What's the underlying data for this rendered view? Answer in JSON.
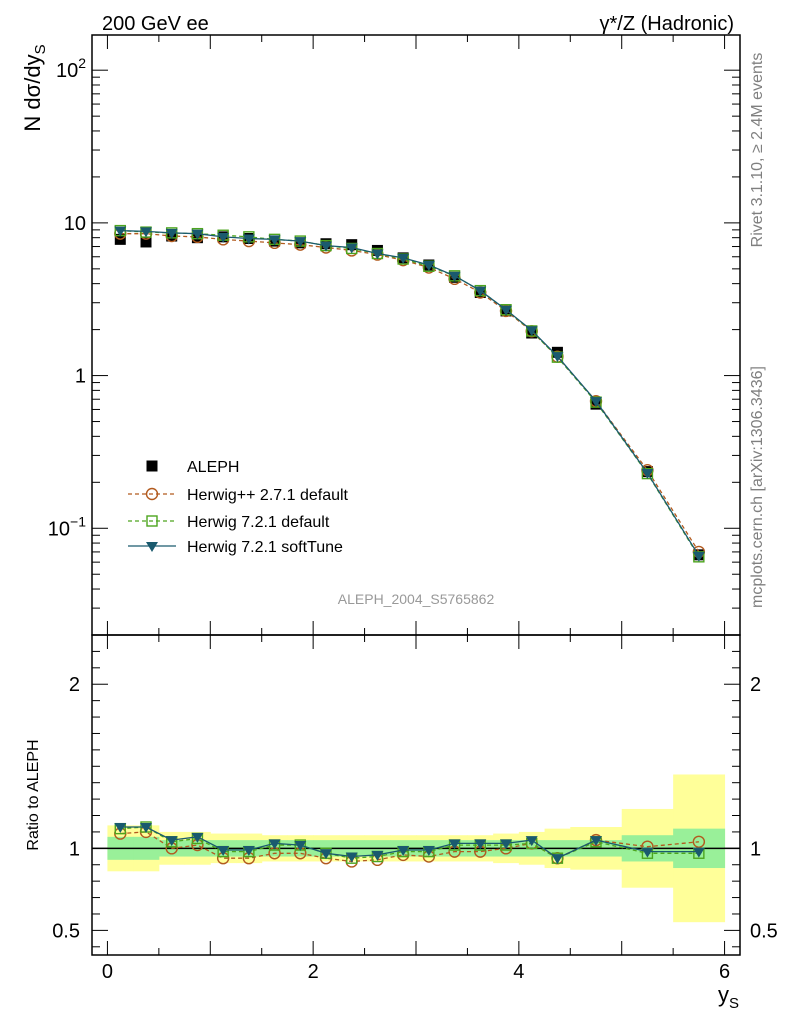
{
  "header": {
    "left": "200 GeV ee",
    "right": "γ*/Z (Hadronic)"
  },
  "side_labels": {
    "rivet": "Rivet 3.1.10, ≥ 2.4M events",
    "mcplots": "mcplots.cern.ch [arXiv:1306.3436]"
  },
  "watermark": "ALEPH_2004_S5765862",
  "colors": {
    "aleph": "#000000",
    "herwigpp": "#b25a1e",
    "herwig721": "#4da51e",
    "softtune": "#1a5a6e",
    "band_inner": "#99f099",
    "band_outer": "#ffff99"
  },
  "chart_data": [
    {
      "type": "scatter",
      "title": "",
      "xlabel": "y_S",
      "ylabel": "N dσ/dy_S",
      "yscale": "log",
      "ylim": [
        0.02,
        170
      ],
      "xlim": [
        -0.15,
        6.15
      ],
      "y_tick_labels": [
        "10^-1",
        "1",
        "10",
        "10^2"
      ],
      "legend_placement": "lower-left",
      "x": [
        0.125,
        0.375,
        0.625,
        0.875,
        1.125,
        1.375,
        1.625,
        1.875,
        2.125,
        2.375,
        2.625,
        2.875,
        3.125,
        3.375,
        3.625,
        3.875,
        4.125,
        4.375,
        4.75,
        5.25,
        5.75
      ],
      "series": [
        {
          "name": "ALEPH",
          "marker": "square-filled",
          "values": [
            7.8,
            7.5,
            8.2,
            8.0,
            8.1,
            7.9,
            7.6,
            7.4,
            7.3,
            7.2,
            6.6,
            5.9,
            5.3,
            4.4,
            3.5,
            2.65,
            1.9,
            1.42,
            0.65,
            0.235,
            0.067
          ]
        },
        {
          "name": "Herwig++ 2.7.1 default",
          "marker": "circle-open",
          "line": "dashed",
          "values": [
            8.5,
            8.5,
            8.2,
            8.1,
            7.8,
            7.6,
            7.4,
            7.2,
            6.9,
            6.6,
            6.2,
            5.7,
            5.1,
            4.3,
            3.5,
            2.65,
            1.95,
            1.33,
            0.68,
            0.24,
            0.07
          ]
        },
        {
          "name": "Herwig 7.2.1 default",
          "marker": "square-open",
          "line": "dashed",
          "values": [
            8.9,
            8.7,
            8.6,
            8.5,
            8.3,
            8.1,
            7.8,
            7.6,
            7.1,
            6.8,
            6.3,
            5.8,
            5.2,
            4.5,
            3.6,
            2.7,
            1.96,
            1.32,
            0.67,
            0.228,
            0.065
          ]
        },
        {
          "name": "Herwig 7.2.1 softTune",
          "marker": "triangle-down",
          "line": "solid",
          "values": [
            8.9,
            8.8,
            8.6,
            8.5,
            8.1,
            7.9,
            7.8,
            7.6,
            7.1,
            6.9,
            6.3,
            5.9,
            5.3,
            4.5,
            3.6,
            2.7,
            1.98,
            1.34,
            0.68,
            0.23,
            0.066
          ]
        }
      ]
    },
    {
      "type": "line",
      "xlabel": "y_S",
      "ylabel": "Ratio to ALEPH",
      "ylim": [
        0.35,
        2.3
      ],
      "xlim": [
        -0.15,
        6.15
      ],
      "x_tick_labels": [
        "0",
        "2",
        "4",
        "6"
      ],
      "y_tick_labels": [
        "0.5",
        "1",
        "2"
      ],
      "x": [
        0.125,
        0.375,
        0.625,
        0.875,
        1.125,
        1.375,
        1.625,
        1.875,
        2.125,
        2.375,
        2.625,
        2.875,
        3.125,
        3.375,
        3.625,
        3.875,
        4.125,
        4.375,
        4.75,
        5.25,
        5.75
      ],
      "bands": {
        "edges": [
          0.0,
          0.25,
          0.5,
          0.75,
          1.0,
          1.25,
          1.5,
          1.75,
          2.0,
          2.25,
          2.5,
          2.75,
          3.0,
          3.25,
          3.5,
          3.75,
          4.0,
          4.25,
          4.5,
          5.0,
          5.5,
          6.0
        ],
        "inner": [
          0.07,
          0.07,
          0.05,
          0.05,
          0.05,
          0.05,
          0.05,
          0.05,
          0.05,
          0.05,
          0.05,
          0.05,
          0.05,
          0.05,
          0.05,
          0.05,
          0.05,
          0.05,
          0.05,
          0.08,
          0.12
        ],
        "outer": [
          0.14,
          0.14,
          0.1,
          0.1,
          0.09,
          0.09,
          0.08,
          0.08,
          0.08,
          0.08,
          0.08,
          0.08,
          0.08,
          0.08,
          0.08,
          0.09,
          0.1,
          0.12,
          0.13,
          0.24,
          0.45
        ]
      },
      "series": [
        {
          "name": "Herwig++ 2.7.1 default",
          "values": [
            1.09,
            1.1,
            1.0,
            1.02,
            0.94,
            0.94,
            0.97,
            0.97,
            0.94,
            0.92,
            0.93,
            0.96,
            0.95,
            0.98,
            0.98,
            1.0,
            1.03,
            0.94,
            1.05,
            1.01,
            1.04
          ]
        },
        {
          "name": "Herwig 7.2.1 default",
          "values": [
            1.12,
            1.13,
            1.04,
            1.06,
            0.98,
            0.98,
            1.02,
            1.02,
            0.97,
            0.94,
            0.95,
            0.98,
            0.98,
            1.02,
            1.02,
            1.02,
            1.03,
            0.94,
            1.04,
            0.97,
            0.97
          ]
        },
        {
          "name": "Herwig 7.2.1 softTune",
          "values": [
            1.13,
            1.13,
            1.05,
            1.07,
            0.99,
            0.99,
            1.03,
            1.02,
            0.97,
            0.95,
            0.96,
            0.99,
            0.99,
            1.03,
            1.03,
            1.03,
            1.05,
            0.94,
            1.05,
            0.98,
            0.98
          ]
        }
      ]
    }
  ]
}
